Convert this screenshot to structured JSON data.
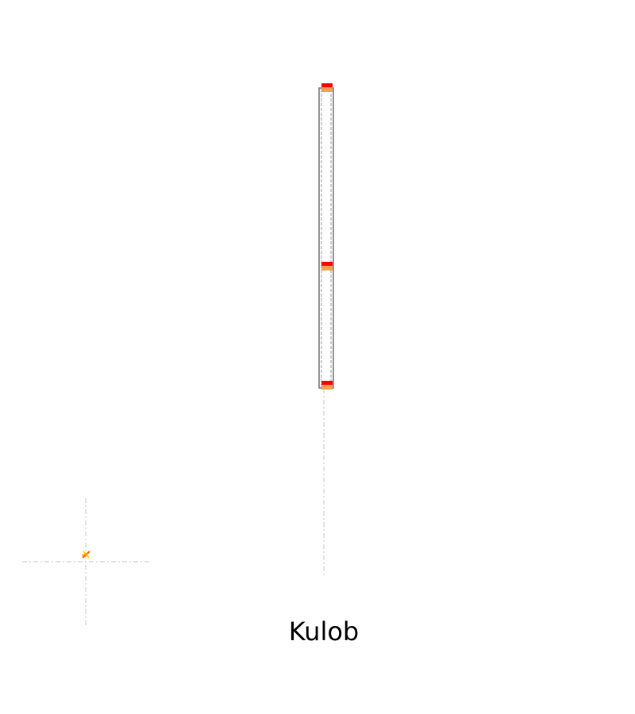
{
  "caption": {
    "label": "Kulob"
  },
  "colors": {
    "background": "#ffffff",
    "guide_line": "#cfcfcf",
    "rail_outline": "#7a7a7a",
    "rail_dash": "#9a9a9a",
    "node_marker_top": "#ff0000",
    "node_marker_bottom": "#f5a050",
    "small_marker_a": "#ff6600",
    "small_marker_b": "#ffcc00"
  },
  "icons": {
    "node_marker": "red-orange-block-icon",
    "small_marker": "orange-x-icon"
  }
}
